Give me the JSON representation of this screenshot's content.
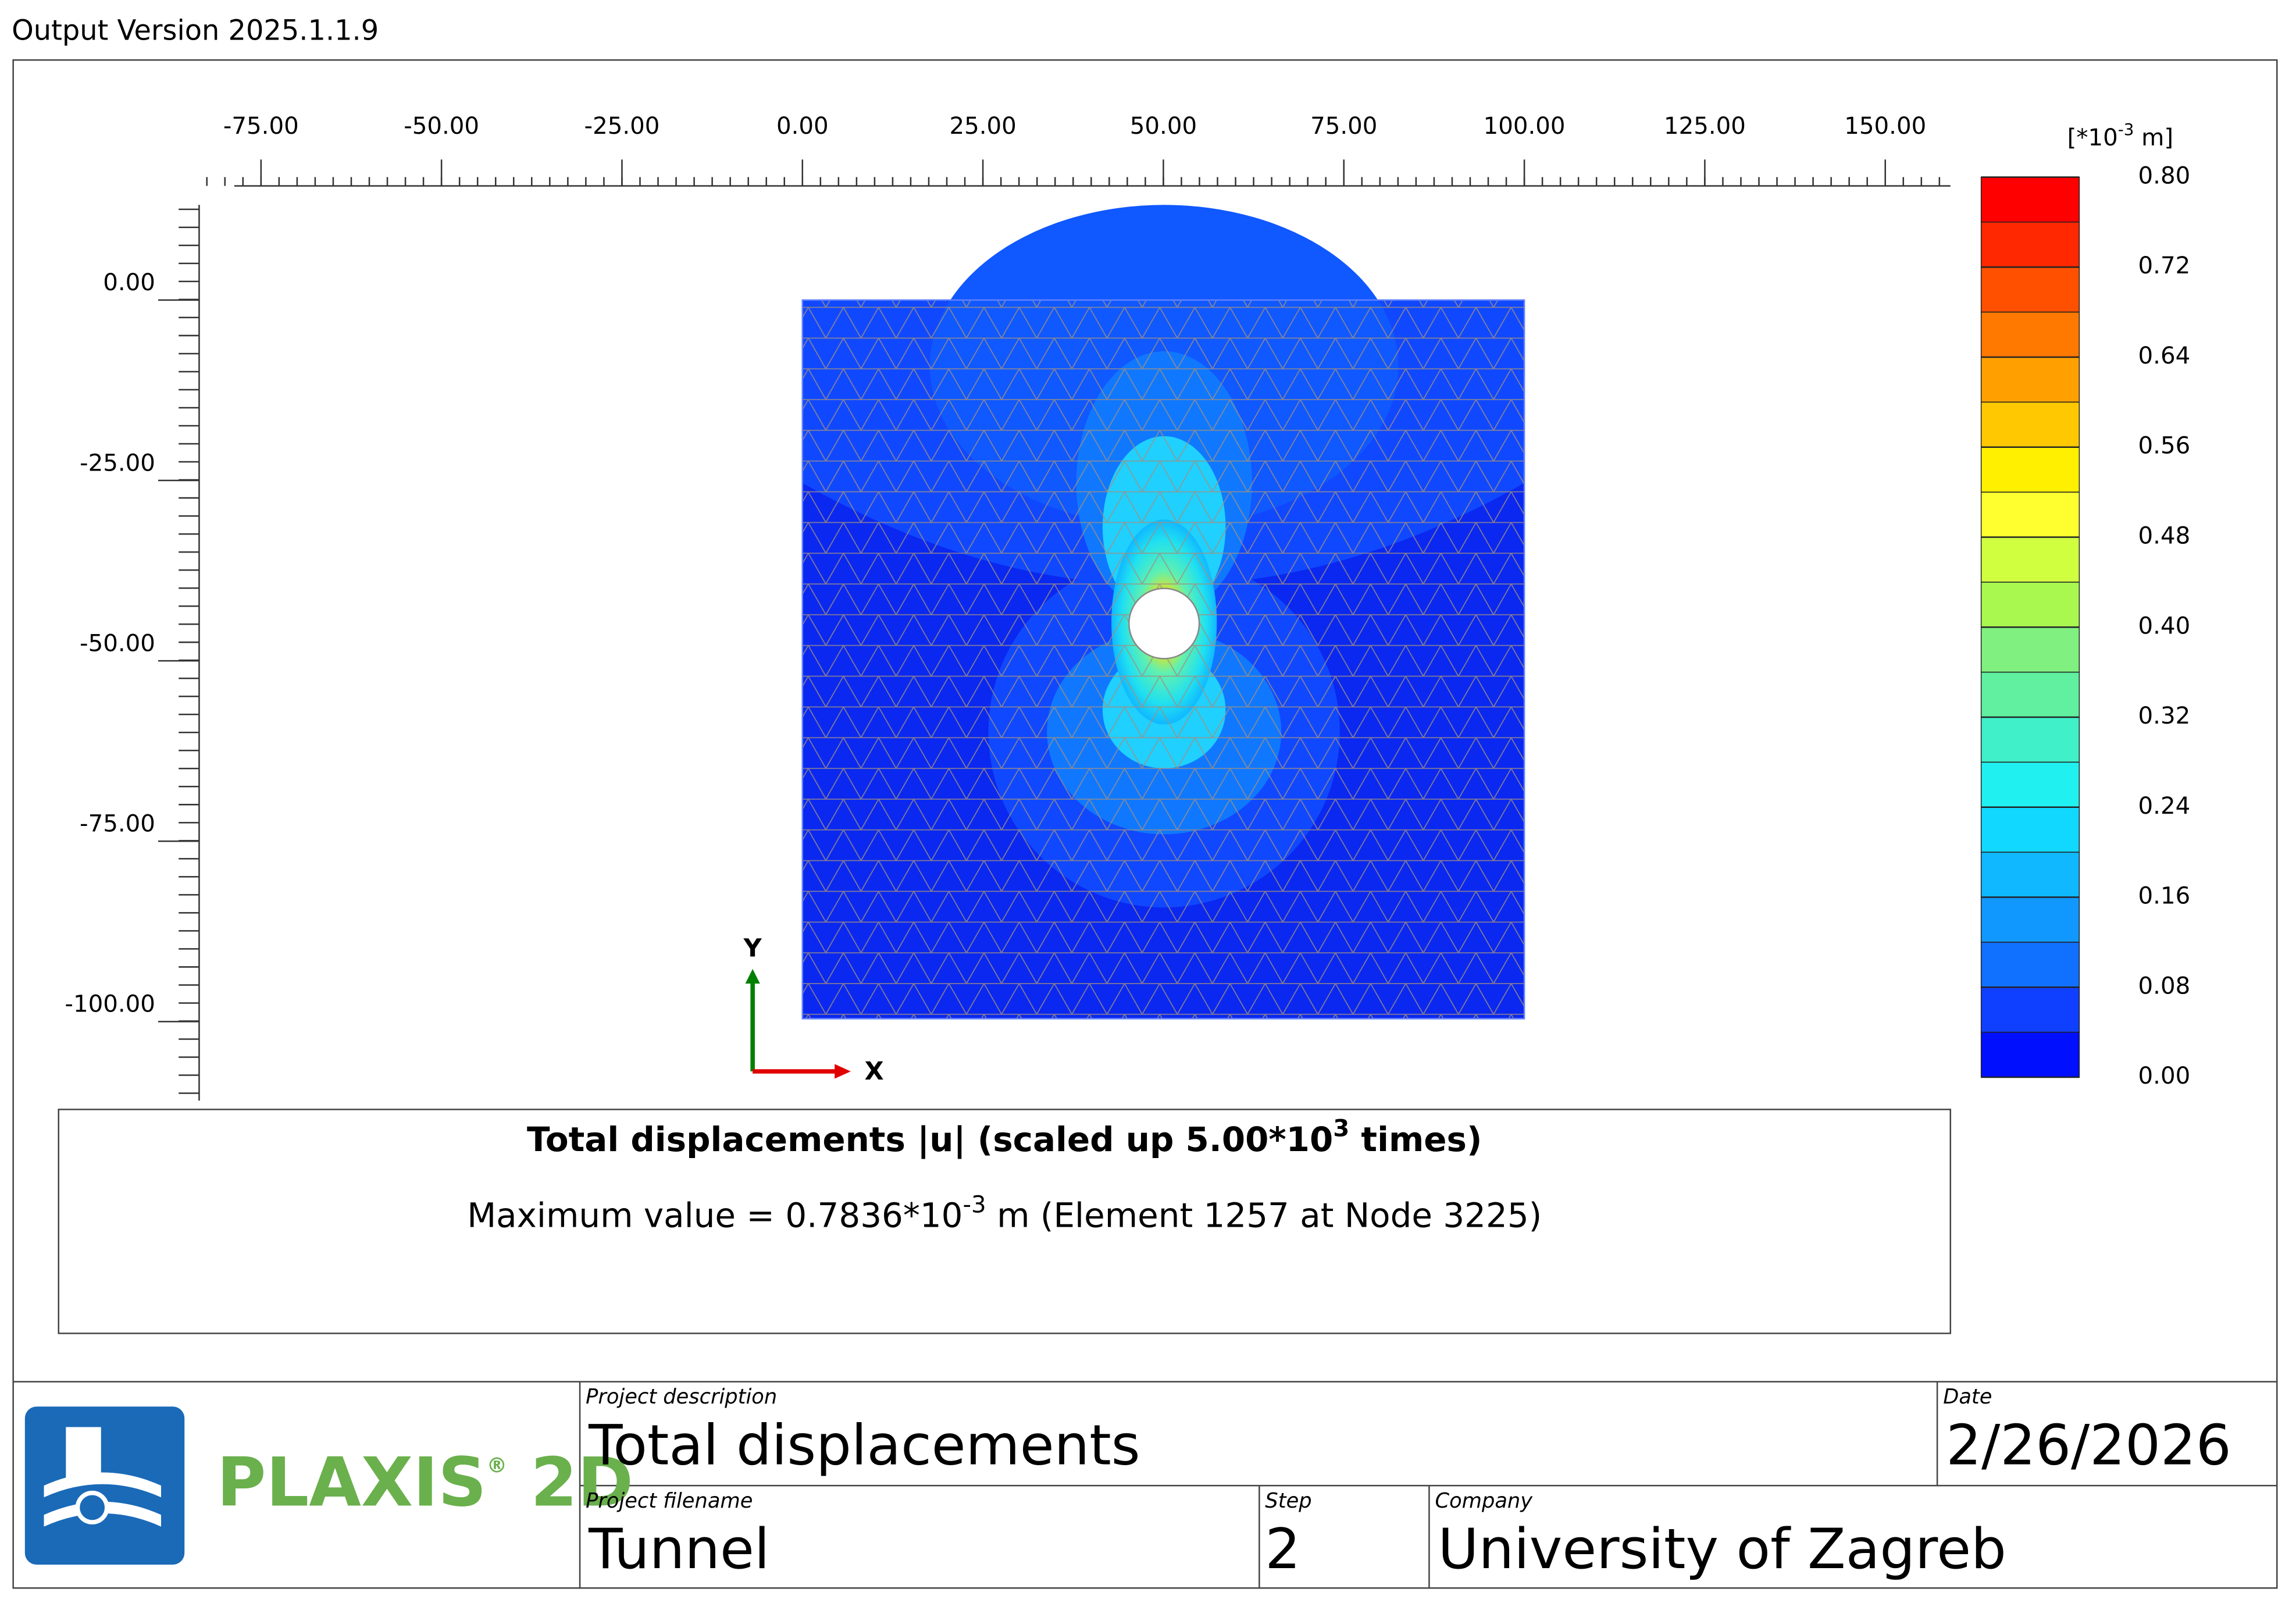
{
  "header": {
    "version": "Output Version 2025.1.1.9"
  },
  "plot": {
    "xticks": [
      {
        "value": -75,
        "label": "-75.00"
      },
      {
        "value": -50,
        "label": "-50.00"
      },
      {
        "value": -25,
        "label": "-25.00"
      },
      {
        "value": 0,
        "label": "0.00"
      },
      {
        "value": 25,
        "label": "25.00"
      },
      {
        "value": 50,
        "label": "50.00"
      },
      {
        "value": 75,
        "label": "75.00"
      },
      {
        "value": 100,
        "label": "100.00"
      },
      {
        "value": 125,
        "label": "125.00"
      },
      {
        "value": 150,
        "label": "150.00"
      }
    ],
    "yticks": [
      {
        "value": 0,
        "label": "0.00"
      },
      {
        "value": -25,
        "label": "-25.00"
      },
      {
        "value": -50,
        "label": "-50.00"
      },
      {
        "value": -75,
        "label": "-75.00"
      },
      {
        "value": -100,
        "label": "-100.00"
      }
    ],
    "axis_x": "X",
    "axis_y": "Y"
  },
  "legend": {
    "unit_pre": "[*10",
    "unit_exp": "-3",
    "unit_post": " m]",
    "ticks": [
      {
        "value": 0.8,
        "label": "0.80"
      },
      {
        "value": 0.72,
        "label": "0.72"
      },
      {
        "value": 0.64,
        "label": "0.64"
      },
      {
        "value": 0.56,
        "label": "0.56"
      },
      {
        "value": 0.48,
        "label": "0.48"
      },
      {
        "value": 0.4,
        "label": "0.40"
      },
      {
        "value": 0.32,
        "label": "0.32"
      },
      {
        "value": 0.24,
        "label": "0.24"
      },
      {
        "value": 0.16,
        "label": "0.16"
      },
      {
        "value": 0.08,
        "label": "0.08"
      },
      {
        "value": 0,
        "label": "0.00"
      }
    ],
    "colors": [
      "#ff0000",
      "#ff2800",
      "#ff5000",
      "#ff7800",
      "#ffa000",
      "#ffc800",
      "#fff000",
      "#ffff30",
      "#d0ff40",
      "#a8f850",
      "#80f080",
      "#60f0a0",
      "#40f0c8",
      "#20f0f0",
      "#10d8ff",
      "#10b8ff",
      "#1098ff",
      "#1070ff",
      "#1040ff",
      "#0010ff"
    ]
  },
  "caption": {
    "title_pre": "Total displacements |u| (scaled up 5.00*10",
    "title_exp": "3",
    "title_post": " times)",
    "max_pre": "Maximum value = 0.7836*10",
    "max_exp": "-3",
    "max_post": " m (Element 1257 at Node 3225)"
  },
  "title_block": {
    "logo": "PLAXIS",
    "logo_mark": "®",
    "logo_suffix": " 2D",
    "project_description_label": "Project description",
    "project_description": "Total displacements",
    "date_label": "Date",
    "date": "2/26/2026",
    "project_filename_label": "Project filename",
    "project_filename": "Tunnel",
    "step_label": "Step",
    "step": "2",
    "company_label": "Company",
    "company": "University of Zagreb"
  }
}
